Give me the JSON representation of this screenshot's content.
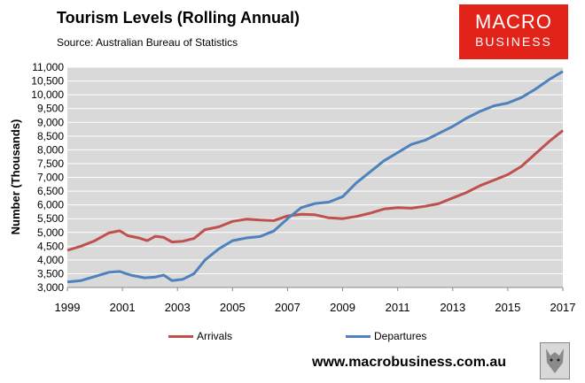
{
  "header": {
    "title": "Tourism Levels (Rolling Annual)",
    "source": "Source: Australian Bureau of Statistics"
  },
  "logo": {
    "line1": "MACRO",
    "line2": "BUSINESS"
  },
  "footer": {
    "url": "www.macrobusiness.com.au"
  },
  "colors": {
    "arrivals": "#c0504d",
    "departures": "#4f81bd",
    "plot_bg": "#d9d9d9",
    "brand": "#e2231a"
  },
  "chart_data": {
    "type": "line",
    "title": "Tourism Levels (Rolling Annual)",
    "xlabel": "",
    "ylabel": "Number (Thousands)",
    "xlim": [
      1999,
      2017
    ],
    "ylim": [
      3000,
      11000
    ],
    "x_ticks": [
      "1999",
      "2001",
      "2003",
      "2005",
      "2007",
      "2009",
      "2011",
      "2013",
      "2015",
      "2017"
    ],
    "y_ticks": [
      "3,000",
      "3,500",
      "4,000",
      "4,500",
      "5,000",
      "5,500",
      "6,000",
      "6,500",
      "7,000",
      "7,500",
      "8,000",
      "8,500",
      "9,000",
      "9,500",
      "10,000",
      "10,500",
      "11,000"
    ],
    "legend_position": "bottom",
    "series": [
      {
        "name": "Arrivals",
        "x": [
          1999,
          1999.5,
          2000,
          2000.5,
          2000.9,
          2001.2,
          2001.6,
          2001.9,
          2002.2,
          2002.5,
          2002.8,
          2003.2,
          2003.6,
          2004,
          2004.5,
          2005,
          2005.5,
          2006,
          2006.5,
          2007,
          2007.5,
          2008,
          2008.5,
          2009,
          2009.5,
          2010,
          2010.5,
          2011,
          2011.5,
          2012,
          2012.5,
          2013,
          2013.5,
          2014,
          2014.5,
          2015,
          2015.5,
          2016,
          2016.5,
          2017
        ],
        "values": [
          4350,
          4500,
          4700,
          4980,
          5060,
          4880,
          4800,
          4700,
          4860,
          4820,
          4650,
          4680,
          4780,
          5100,
          5200,
          5400,
          5480,
          5450,
          5430,
          5600,
          5660,
          5640,
          5530,
          5500,
          5580,
          5700,
          5850,
          5900,
          5880,
          5950,
          6050,
          6250,
          6450,
          6700,
          6900,
          7100,
          7400,
          7850,
          8300,
          8700
        ]
      },
      {
        "name": "Departures",
        "x": [
          1999,
          1999.5,
          2000,
          2000.5,
          2000.9,
          2001.3,
          2001.8,
          2002.2,
          2002.5,
          2002.8,
          2003.2,
          2003.6,
          2004,
          2004.5,
          2005,
          2005.5,
          2006,
          2006.5,
          2007,
          2007.5,
          2008,
          2008.5,
          2009,
          2009.5,
          2010,
          2010.5,
          2011,
          2011.5,
          2012,
          2012.5,
          2013,
          2013.5,
          2014,
          2014.5,
          2015,
          2015.5,
          2016,
          2016.5,
          2017
        ],
        "values": [
          3200,
          3250,
          3400,
          3550,
          3580,
          3450,
          3350,
          3380,
          3450,
          3250,
          3300,
          3500,
          4000,
          4400,
          4700,
          4800,
          4850,
          5050,
          5500,
          5900,
          6050,
          6100,
          6300,
          6800,
          7200,
          7600,
          7900,
          8200,
          8350,
          8600,
          8850,
          9150,
          9400,
          9600,
          9700,
          9900,
          10200,
          10550,
          10850
        ]
      }
    ]
  }
}
